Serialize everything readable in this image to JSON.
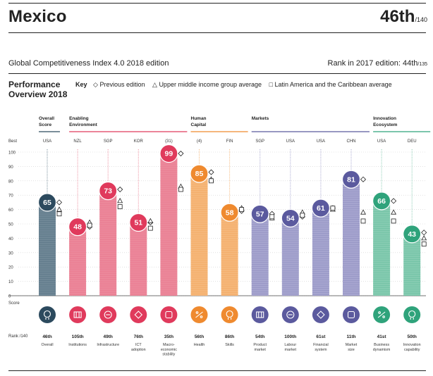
{
  "header": {
    "country": "Mexico",
    "rank": "46th",
    "rank_of": "/140",
    "edition": "Global Competitiveness Index 4.0 2018 edition",
    "prev_rank_label": "Rank in 2017 edition: 44th",
    "prev_rank_of": "/135"
  },
  "performance": {
    "title_line1": "Performance",
    "title_line2": "Overview 2018",
    "key_label": "Key",
    "key_items": [
      {
        "symbol": "diamond",
        "label": "Previous edition"
      },
      {
        "symbol": "triangle",
        "label": "Upper middle income group average"
      },
      {
        "symbol": "square",
        "label": "Latin America and the Caribbean average"
      }
    ]
  },
  "axis": {
    "best_label": "Best",
    "score_label": "Score",
    "rank_label": "Rank /140",
    "ticks": [
      "100",
      "90",
      "80",
      "70",
      "60",
      "50",
      "40",
      "30",
      "20",
      "10",
      "0"
    ]
  },
  "groups": [
    {
      "title": "Overall\nScore",
      "color": "#2c4a5e",
      "start": 0,
      "end": 0
    },
    {
      "title": "Enabling\nEnvironment",
      "color": "#e03a5c",
      "start": 1,
      "end": 4
    },
    {
      "title": "Human\nCapital",
      "color": "#ef8a2f",
      "start": 5,
      "end": 6
    },
    {
      "title": "Markets",
      "color": "#5b5a9e",
      "start": 7,
      "end": 10
    },
    {
      "title": "Innovation\nEcosystem",
      "color": "#2fa37b",
      "start": 11,
      "end": 12
    }
  ],
  "chart_data": {
    "type": "bar",
    "ylim": [
      0,
      100
    ],
    "categories": [
      "Overall",
      "Institutions",
      "Infrastructure",
      "ICT adoption",
      "Macro-economic stability",
      "Health",
      "Skills",
      "Product market",
      "Labour market",
      "Financial system",
      "Market size",
      "Business dynamism",
      "Innovation capability"
    ],
    "category_labels": [
      "Overall",
      "Institutions",
      "Infrastructure",
      "ICT\nadoption",
      "Macro-\neconomic\nstability",
      "Health",
      "Skills",
      "Product\nmarket",
      "Labour\nmarket",
      "Financial\nsystem",
      "Market\nsize",
      "Business\ndynamism",
      "Innovation\ncapability"
    ],
    "best": [
      "USA",
      "NZL",
      "SGP",
      "KOR",
      "(31)",
      "(4)",
      "FIN",
      "SGP",
      "USA",
      "USA",
      "CHN",
      "USA",
      "DEU"
    ],
    "scores": [
      65,
      48,
      73,
      51,
      99,
      85,
      58,
      57,
      54,
      61,
      81,
      66,
      43
    ],
    "ranks": [
      "46th",
      "105th",
      "49th",
      "76th",
      "35th",
      "56th",
      "86th",
      "54th",
      "100th",
      "61st",
      "11th",
      "41st",
      "50th"
    ],
    "series": [
      {
        "name": "Previous edition",
        "marker": "diamond",
        "values": [
          65,
          48,
          74,
          51,
          99,
          86,
          59,
          57,
          55,
          61,
          81,
          66,
          44
        ]
      },
      {
        "name": "Upper middle income group average",
        "marker": "triangle",
        "values": [
          60,
          51,
          66,
          52,
          76,
          81,
          61,
          54,
          58,
          60,
          58,
          58,
          40
        ]
      },
      {
        "name": "Latin America and the Caribbean average",
        "marker": "square",
        "values": [
          57,
          49,
          62,
          47,
          74,
          80,
          60,
          55,
          56,
          61,
          52,
          52,
          36
        ]
      }
    ],
    "colors": [
      "#2c4a5e",
      "#e03a5c",
      "#e03a5c",
      "#e03a5c",
      "#e03a5c",
      "#ef8a2f",
      "#ef8a2f",
      "#5b5a9e",
      "#5b5a9e",
      "#5b5a9e",
      "#5b5a9e",
      "#2fa37b",
      "#2fa37b"
    ],
    "light_colors": [
      "#6f8796",
      "#ec8a9c",
      "#ec8a9c",
      "#ec8a9c",
      "#ec8a9c",
      "#f5b77a",
      "#f5b77a",
      "#a6a5cf",
      "#a6a5cf",
      "#a6a5cf",
      "#a6a5cf",
      "#85cbb1",
      "#85cbb1"
    ],
    "icons": [
      "medal-icon",
      "institution-icon",
      "infrastructure-icon",
      "chip-icon",
      "percent-icon",
      "heart-icon",
      "graduate-icon",
      "tag-icon",
      "people-icon",
      "card-icon",
      "expand-icon",
      "building-icon",
      "bulb-icon"
    ]
  }
}
